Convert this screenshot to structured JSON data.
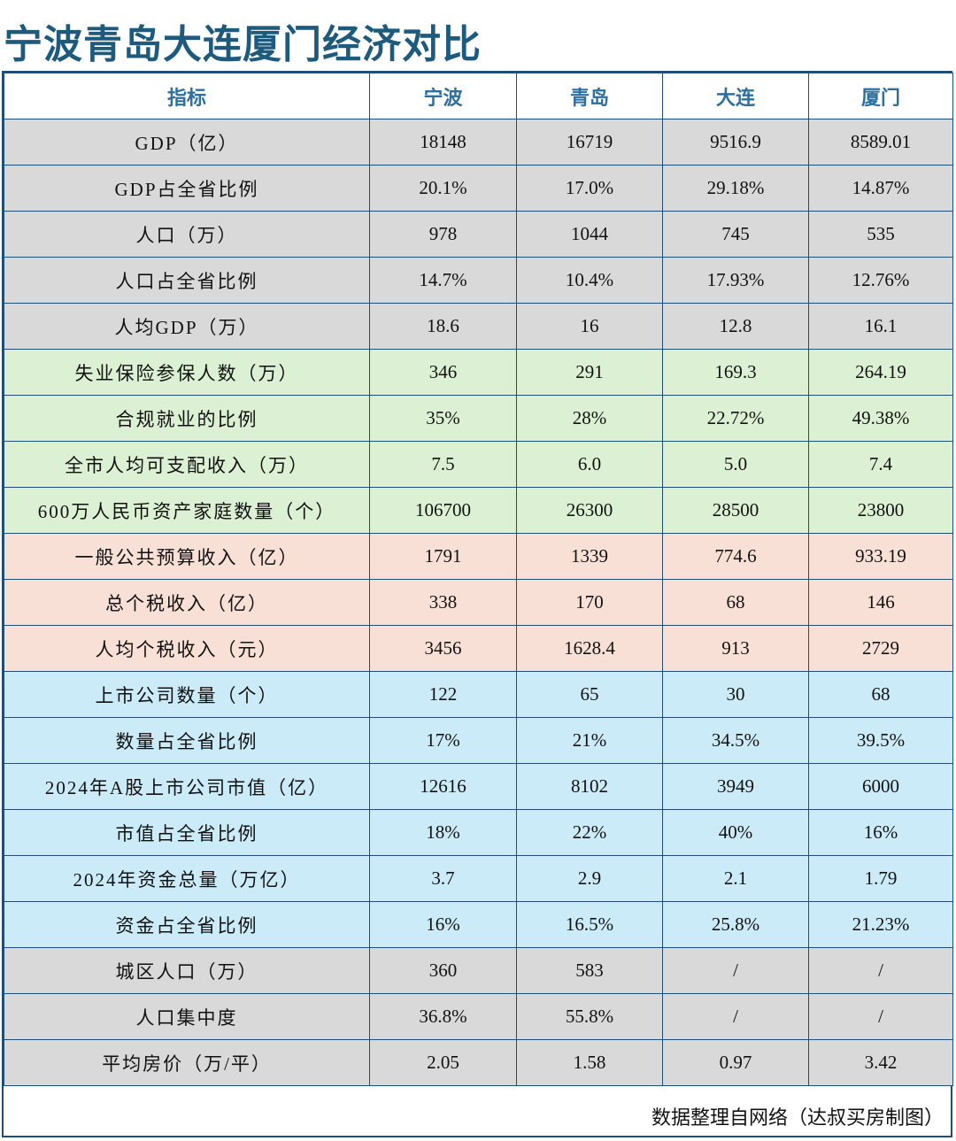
{
  "header": {
    "title": "宁波青岛大连厦门经济对比"
  },
  "table": {
    "columns": [
      "指标",
      "宁波",
      "青岛",
      "大连",
      "厦门"
    ],
    "rows": [
      [
        "GDP（亿）",
        "18148",
        "16719",
        "9516.9",
        "8589.01"
      ],
      [
        "GDP占全省比例",
        "20.1%",
        "17.0%",
        "29.18%",
        "14.87%"
      ],
      [
        "人口（万）",
        "978",
        "1044",
        "745",
        "535"
      ],
      [
        "人口占全省比例",
        "14.7%",
        "10.4%",
        "17.93%",
        "12.76%"
      ],
      [
        "人均GDP（万）",
        "18.6",
        "16",
        "12.8",
        "16.1"
      ],
      [
        "失业保险参保人数（万）",
        "346",
        "291",
        "169.3",
        "264.19"
      ],
      [
        "合规就业的比例",
        "35%",
        "28%",
        "22.72%",
        "49.38%"
      ],
      [
        "全市人均可支配收入（万）",
        "7.5",
        "6.0",
        "5.0",
        "7.4"
      ],
      [
        "600万人民币资产家庭数量（个）",
        "106700",
        "26300",
        "28500",
        "23800"
      ],
      [
        "一般公共预算收入（亿）",
        "1791",
        "1339",
        "774.6",
        "933.19"
      ],
      [
        "总个税收入（亿）",
        "338",
        "170",
        "68",
        "146"
      ],
      [
        "人均个税收入（元）",
        "3456",
        "1628.4",
        "913",
        "2729"
      ],
      [
        "上市公司数量（个）",
        "122",
        "65",
        "30",
        "68"
      ],
      [
        "数量占全省比例",
        "17%",
        "21%",
        "34.5%",
        "39.5%"
      ],
      [
        "2024年A股上市公司市值（亿）",
        "12616",
        "8102",
        "3949",
        "6000"
      ],
      [
        "市值占全省比例",
        "18%",
        "22%",
        "40%",
        "16%"
      ],
      [
        "2024年资金总量（万亿）",
        "3.7",
        "2.9",
        "2.1",
        "1.79"
      ],
      [
        "资金占全省比例",
        "16%",
        "16.5%",
        "25.8%",
        "21.23%"
      ],
      [
        "城区人口（万）",
        "360",
        "583",
        "/",
        "/"
      ],
      [
        "人口集中度",
        "36.8%",
        "55.8%",
        "/",
        "/"
      ],
      [
        "平均房价（万/平）",
        "2.05",
        "1.58",
        "0.97",
        "3.42"
      ]
    ]
  },
  "footer": {
    "source": "数据整理自网络（达叔买房制图）"
  }
}
